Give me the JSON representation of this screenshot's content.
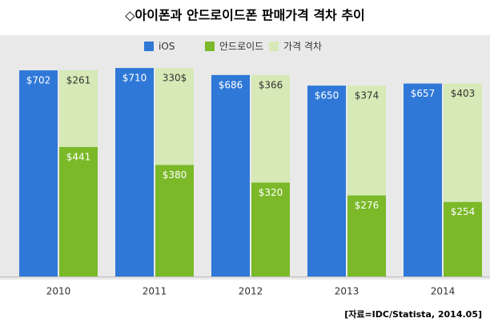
{
  "chart_data": {
    "type": "bar",
    "title": "◇아이폰과 안드로이드폰 판매가격 격차 추이",
    "categories": [
      "2010",
      "2011",
      "2012",
      "2013",
      "2014"
    ],
    "series": [
      {
        "name": "iOS",
        "color": "#2f78d8",
        "values": [
          702,
          710,
          686,
          650,
          657
        ],
        "value_labels": [
          "$702",
          "$710",
          "$686",
          "$650",
          "$657"
        ]
      },
      {
        "name": "안드로이드",
        "color": "#7bb929",
        "values": [
          441,
          380,
          320,
          276,
          254
        ],
        "value_labels": [
          "$441",
          "$380",
          "$320",
          "$276",
          "$254"
        ]
      },
      {
        "name": "가격 격차",
        "color": "#d6e9b6",
        "values": [
          261,
          330,
          366,
          374,
          403
        ],
        "value_labels": [
          "$261",
          "330$",
          "$366",
          "$374",
          "$403"
        ]
      }
    ],
    "source": "[자료=IDC/Statista, 2014.05]"
  }
}
